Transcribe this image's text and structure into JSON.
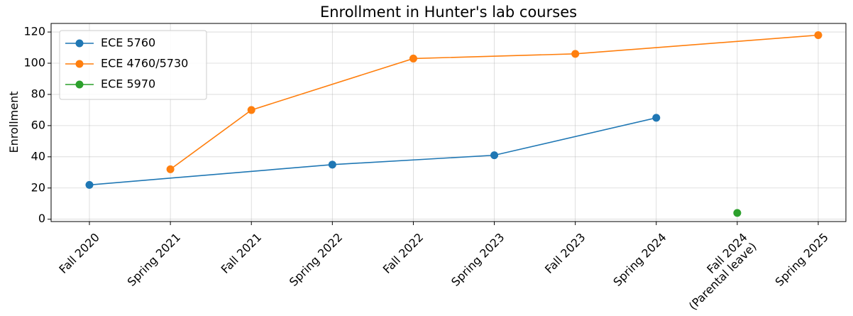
{
  "chart_data": {
    "type": "line",
    "title": "Enrollment in Hunter's lab courses",
    "ylabel": "Enrollment",
    "categories": [
      "Fall 2020",
      "Spring 2021",
      "Fall 2021",
      "Spring 2022",
      "Fall 2022",
      "Spring 2023",
      "Fall 2023",
      "Spring 2024",
      "Fall 2024\n(Parental leave)",
      "Spring 2025"
    ],
    "series": [
      {
        "name": "ECE 5760",
        "color": "#1f77b4",
        "x": [
          "Fall 2020",
          "Spring 2022",
          "Spring 2023",
          "Spring 2024"
        ],
        "values": [
          22,
          35,
          41,
          65
        ]
      },
      {
        "name": "ECE 4760/5730",
        "color": "#ff7f0e",
        "x": [
          "Spring 2021",
          "Fall 2021",
          "Fall 2022",
          "Fall 2023",
          "Spring 2025"
        ],
        "values": [
          32,
          70,
          103,
          106,
          118
        ]
      },
      {
        "name": "ECE 5970",
        "color": "#2ca02c",
        "x": [
          "Fall 2024\n(Parental leave)"
        ],
        "values": [
          4
        ]
      }
    ],
    "ylim": [
      -1.5,
      125.5
    ],
    "yticks": [
      0,
      20,
      40,
      60,
      80,
      100,
      120
    ],
    "grid": true,
    "legend": "upper left"
  }
}
